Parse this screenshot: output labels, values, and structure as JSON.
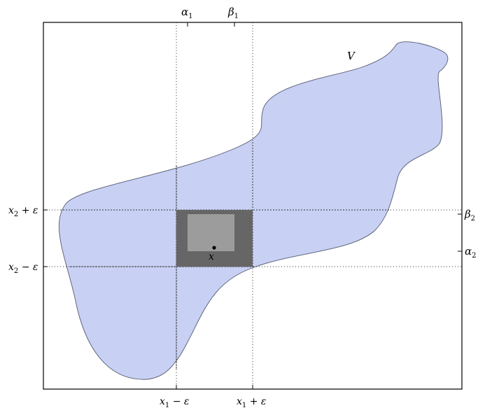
{
  "colors": {
    "region_fill": "#c8d0f4",
    "region_stroke": "#555a70",
    "outer_square": "#666666",
    "inner_square": "#9c9c9c",
    "frame": "#000000",
    "guide_lines": "#333333"
  },
  "labels": {
    "region": "V",
    "point": "x",
    "top_alpha": {
      "base": "α",
      "sub": "1"
    },
    "top_beta": {
      "base": "β",
      "sub": "1"
    },
    "right_beta": {
      "base": "β",
      "sub": "2"
    },
    "right_alpha": {
      "base": "α",
      "sub": "2"
    },
    "left_upper": {
      "base": "x",
      "sub": "2",
      "rest": " + ε"
    },
    "left_lower": {
      "base": "x",
      "sub": "2",
      "rest": " − ε"
    },
    "bottom_left": {
      "base": "x",
      "sub": "1",
      "rest": " − ε"
    },
    "bottom_right": {
      "base": "x",
      "sub": "1",
      "rest": " + ε"
    }
  }
}
